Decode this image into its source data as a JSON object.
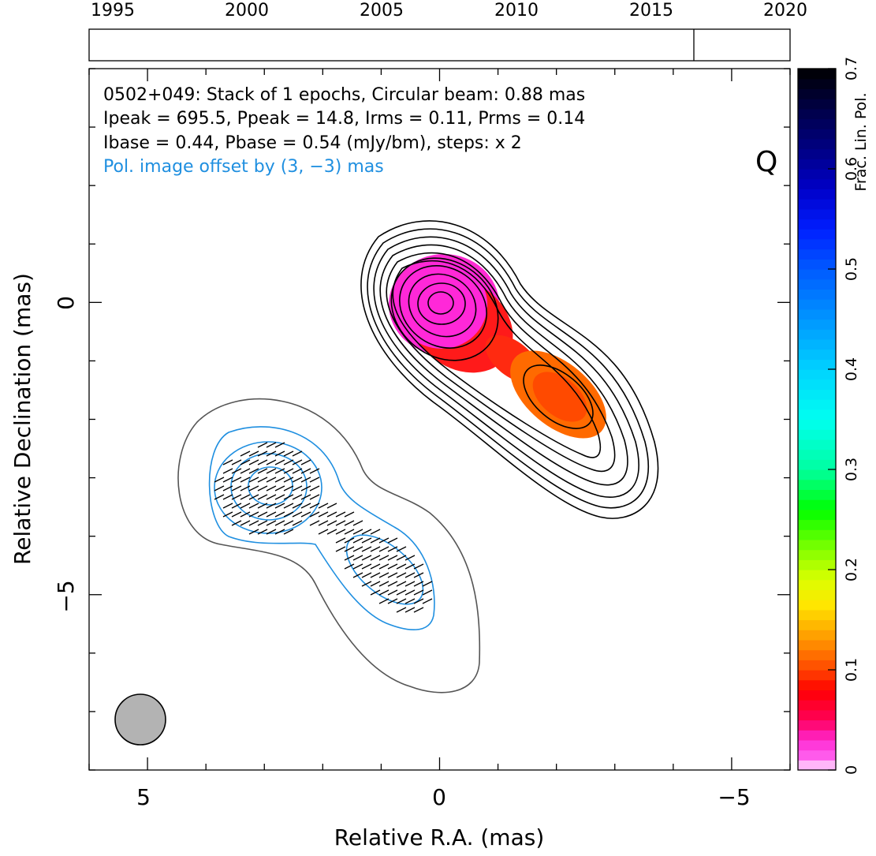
{
  "timeline": {
    "year_labels": [
      "1995",
      "2000",
      "2005",
      "2010",
      "2015",
      "2020"
    ],
    "year_values": [
      1995,
      2000,
      2005,
      2010,
      2015,
      2020
    ],
    "year_range": [
      1995,
      2020
    ],
    "epochs": [
      2016.6
    ]
  },
  "annotation": {
    "line1": "0502+049: Stack of 1 epochs, Circular beam: 0.88 mas",
    "line2": "Ipeak = 695.5, Ppeak = 14.8, Irms = 0.11, Prms = 0.14",
    "line3": "Ibase = 0.44, Pbase = 0.54 (mJy/bm), steps: x 2",
    "line4": "Pol. image offset by (3, −3) mas",
    "line4_color": "#1f8fe0",
    "band": "Q"
  },
  "axes": {
    "xlabel": "Relative R.A. (mas)",
    "ylabel": "Relative Declination (mas)",
    "xlim": [
      6,
      -6
    ],
    "ylim": [
      -8,
      4
    ],
    "xticks": [
      5,
      0,
      -5
    ],
    "xtick_labels": [
      "5",
      "0",
      "−5"
    ],
    "yticks": [
      0,
      -5
    ],
    "ytick_labels": [
      "0",
      "−5"
    ]
  },
  "colorbar": {
    "label": "Frac. Lin. Pol.",
    "range": [
      0,
      0.7
    ],
    "tick_values": [
      0,
      0.1,
      0.2,
      0.3,
      0.4,
      0.5,
      0.6,
      0.7
    ],
    "tick_labels": [
      "0",
      "0.1",
      "0.2",
      "0.3",
      "0.4",
      "0.5",
      "0.6",
      "0.7"
    ]
  },
  "chart_data": {
    "type": "heatmap",
    "title": "0502+049: Stack of 1 epochs, Circular beam: 0.88 mas",
    "xlabel": "Relative R.A. (mas)",
    "ylabel": "Relative Declination (mas)",
    "xlim": [
      6,
      -6
    ],
    "ylim": [
      -8,
      4
    ],
    "beam_fwhm_mas": 0.88,
    "beam_center": [
      5,
      -7.1
    ],
    "peak_total_intensity_mJy_per_beam": 695.5,
    "peak_polarized_intensity_mJy_per_beam": 14.8,
    "total_intensity_rms": 0.11,
    "polarized_intensity_rms": 0.14,
    "total_intensity_base_contour": 0.44,
    "polarized_intensity_base_contour": 0.54,
    "contour_step_factor": 2,
    "polarization_image_offset_mas": [
      3,
      -3
    ],
    "total_intensity_components": [
      {
        "x": 0,
        "y": 0,
        "color": "#ff2bd2"
      },
      {
        "x": -2.1,
        "y": -1.6,
        "color": "#ff6a00"
      }
    ],
    "colors": {
      "contour": "#000000",
      "polarization_contour": "#1f8fe0",
      "outer_polarization_contour": "#555555",
      "beam_fill": "#b3b3b3"
    }
  }
}
